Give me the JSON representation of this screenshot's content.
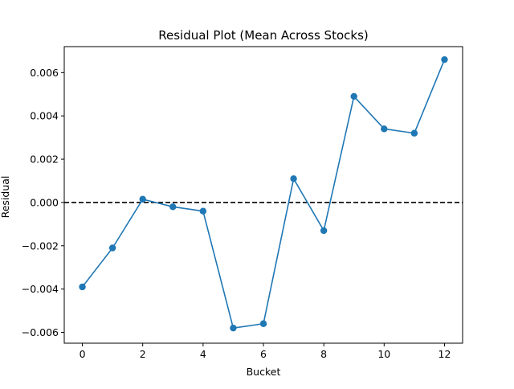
{
  "chart_data": {
    "type": "line",
    "title": "Residual Plot (Mean Across Stocks)",
    "xlabel": "Bucket",
    "ylabel": "Residual",
    "xlim": [
      -0.6,
      12.6
    ],
    "ylim": [
      -0.0065,
      0.0072
    ],
    "x_ticks": [
      0,
      2,
      4,
      6,
      8,
      10,
      12
    ],
    "x_tick_labels": [
      "0",
      "2",
      "4",
      "6",
      "8",
      "10",
      "12"
    ],
    "y_ticks": [
      -0.006,
      -0.004,
      -0.002,
      0.0,
      0.002,
      0.004,
      0.006
    ],
    "y_tick_labels": [
      "−0.006",
      "−0.004",
      "−0.002",
      "0.000",
      "0.002",
      "0.004",
      "0.006"
    ],
    "grid": false,
    "reference_line": {
      "y": 0.0,
      "style": "dashed",
      "color": "#000000"
    },
    "series": [
      {
        "color": "#1f77b4",
        "marker": "circle",
        "x": [
          0,
          1,
          2,
          3,
          4,
          5,
          6,
          7,
          8,
          9,
          10,
          11,
          12
        ],
        "y": [
          -0.0039,
          -0.0021,
          0.00015,
          -0.0002,
          -0.0004,
          -0.0058,
          -0.0056,
          0.0011,
          -0.0013,
          0.0049,
          0.0034,
          0.0032,
          0.0066
        ]
      }
    ]
  }
}
